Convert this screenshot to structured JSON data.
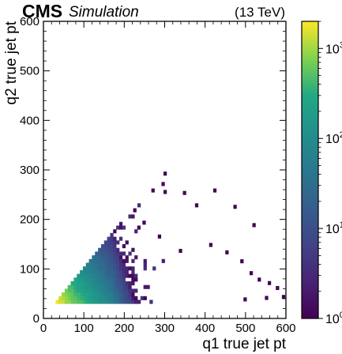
{
  "header": {
    "experiment": "CMS",
    "status": "Simulation",
    "energy": "(13 TeV)"
  },
  "chart_data": {
    "type": "heatmap",
    "title": "",
    "xlabel": "q1 true jet pt",
    "ylabel": "q2 true jet pt",
    "xlim": [
      0,
      600
    ],
    "ylim": [
      0,
      600
    ],
    "xticks": [
      0,
      100,
      200,
      300,
      400,
      500,
      600
    ],
    "yticks": [
      0,
      100,
      200,
      300,
      400,
      500,
      600
    ],
    "bin_width": 7.5,
    "colorbar": {
      "scale": "log",
      "range": [
        1,
        2000
      ],
      "colormap": "viridis",
      "ticks": [
        {
          "value": 1,
          "base": "10",
          "exp": "0"
        },
        {
          "value": 10,
          "base": "10",
          "exp": "1"
        },
        {
          "value": 100,
          "base": "10",
          "exp": "2"
        },
        {
          "value": 1000,
          "base": "10",
          "exp": "3"
        }
      ]
    },
    "density_model": {
      "description_points": [
        {
          "x": 40,
          "y": 35,
          "count": 1800
        },
        {
          "x": 100,
          "y": 50,
          "count": 200
        },
        {
          "x": 150,
          "y": 80,
          "count": 60
        },
        {
          "x": 200,
          "y": 100,
          "count": 15
        },
        {
          "x": 250,
          "y": 80,
          "count": 5
        },
        {
          "x": 350,
          "y": 60,
          "count": 2
        }
      ],
      "edge": "y <= x, y >= 30, x >= 30",
      "outliers": [
        [
          297,
          289
        ],
        [
          222,
          215
        ],
        [
          292,
          268
        ],
        [
          267,
          255
        ],
        [
          297,
          252
        ],
        [
          345,
          250
        ],
        [
          420,
          255
        ],
        [
          470,
          222
        ],
        [
          517,
          185
        ],
        [
          375,
          225
        ],
        [
          232,
          180
        ],
        [
          245,
          190
        ],
        [
          283,
          162
        ],
        [
          335,
          133
        ],
        [
          410,
          145
        ],
        [
          450,
          130
        ],
        [
          487,
          112
        ],
        [
          510,
          88
        ],
        [
          530,
          75
        ],
        [
          555,
          68
        ],
        [
          575,
          58
        ],
        [
          590,
          40
        ],
        [
          495,
          35
        ],
        [
          548,
          38
        ]
      ]
    }
  }
}
